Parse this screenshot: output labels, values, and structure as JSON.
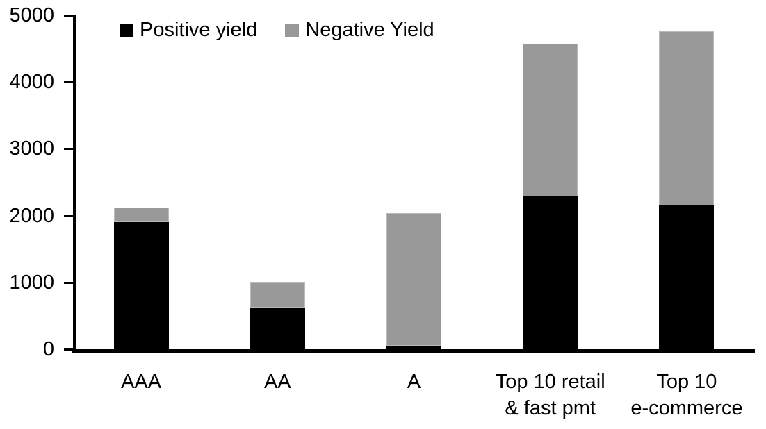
{
  "chart_data": {
    "type": "bar",
    "stacked": true,
    "title": "",
    "xlabel": "",
    "ylabel": "",
    "background": "#ffffff",
    "grid": false,
    "legend_position": "top",
    "ylim": [
      0,
      5000
    ],
    "yticks": [
      0,
      1000,
      2000,
      3000,
      4000,
      5000
    ],
    "ytick_labels": [
      "0",
      "1000",
      "2000",
      "3000",
      "4000",
      "5000"
    ],
    "categories": [
      "AAA",
      "AA",
      "A",
      "Top 10 retail & fast pmt",
      "Top 10 e-commerce"
    ],
    "category_lines": [
      [
        "AAA"
      ],
      [
        "AA"
      ],
      [
        "A"
      ],
      [
        "Top 10 retail",
        "& fast pmt"
      ],
      [
        "Top 10",
        "e-commerce"
      ]
    ],
    "series": [
      {
        "name": "Positive yield",
        "color": "#000000",
        "values": [
          1900,
          620,
          50,
          2290,
          2150
        ]
      },
      {
        "name": "Negative Yield",
        "color": "#999999",
        "values": [
          220,
          390,
          1990,
          2280,
          2610
        ]
      }
    ]
  },
  "legend": {
    "items": [
      {
        "label": "Positive yield",
        "color": "#000000"
      },
      {
        "label": "Negative Yield",
        "color": "#999999"
      }
    ]
  }
}
